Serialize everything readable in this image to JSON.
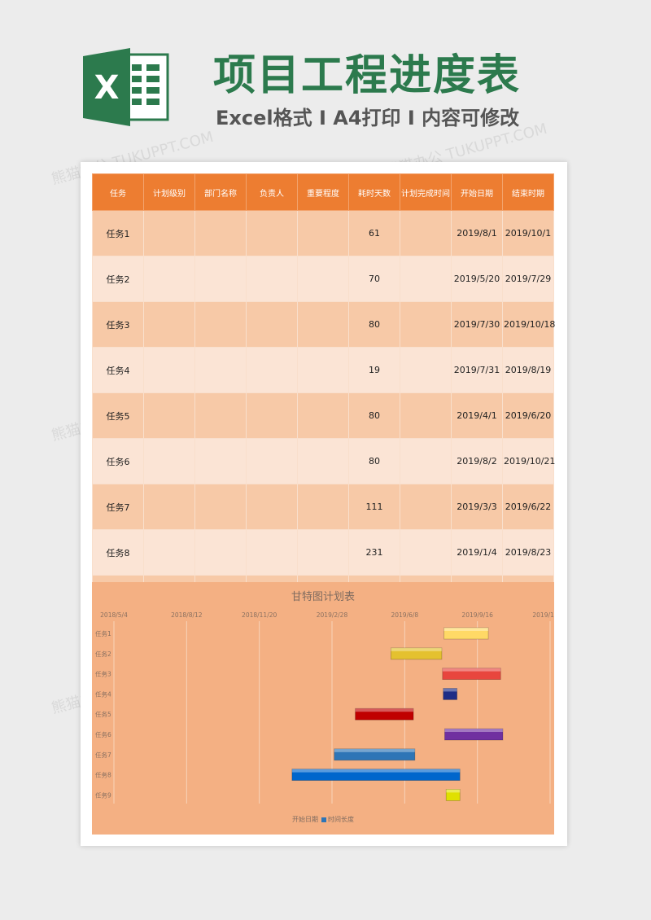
{
  "header": {
    "logo_letter": "X",
    "title": "项目工程进度表",
    "subtitle": "Excel格式 I A4打印 I 内容可修改"
  },
  "colors": {
    "brand_green": "#2c7a4d",
    "header_orange": "#ed7d31",
    "row_dark": "#f7c9a7",
    "row_light": "#fbe4d5",
    "chart_bg": "#f4b083"
  },
  "table": {
    "headers": [
      "任务",
      "计划级别",
      "部门名称",
      "负责人",
      "重要程度",
      "耗时天数",
      "计划完成时间",
      "开始日期",
      "结束时期"
    ],
    "rows": [
      [
        "任务1",
        "",
        "",
        "",
        "",
        "61",
        "",
        "2019/8/1",
        "2019/10/1"
      ],
      [
        "任务2",
        "",
        "",
        "",
        "",
        "70",
        "",
        "2019/5/20",
        "2019/7/29"
      ],
      [
        "任务3",
        "",
        "",
        "",
        "",
        "80",
        "",
        "2019/7/30",
        "2019/10/18"
      ],
      [
        "任务4",
        "",
        "",
        "",
        "",
        "19",
        "",
        "2019/7/31",
        "2019/8/19"
      ],
      [
        "任务5",
        "",
        "",
        "",
        "",
        "80",
        "",
        "2019/4/1",
        "2019/6/20"
      ],
      [
        "任务6",
        "",
        "",
        "",
        "",
        "80",
        "",
        "2019/8/2",
        "2019/10/21"
      ],
      [
        "任务7",
        "",
        "",
        "",
        "",
        "111",
        "",
        "2019/3/3",
        "2019/6/22"
      ],
      [
        "任务8",
        "",
        "",
        "",
        "",
        "231",
        "",
        "2019/1/4",
        "2019/8/23"
      ]
    ]
  },
  "chart_data": {
    "type": "bar",
    "title": "甘特图计划表",
    "x_ticks": [
      "2018/5/4",
      "2018/8/12",
      "2018/11/20",
      "2019/2/28",
      "2019/6/8",
      "2019/9/16",
      "2019/12/25"
    ],
    "xlim": [
      "2018/5/4",
      "2019/12/25"
    ],
    "categories": [
      "任务1",
      "任务2",
      "任务3",
      "任务4",
      "任务5",
      "任务6",
      "任务7",
      "任务8",
      "任务9"
    ],
    "series": [
      {
        "name": "开始日期",
        "values": [
          "2019/8/1",
          "2019/5/20",
          "2019/7/30",
          "2019/7/31",
          "2019/4/1",
          "2019/8/2",
          "2019/3/3",
          "2019/1/4",
          "2019/8/4"
        ]
      },
      {
        "name": "时间长度",
        "values": [
          61,
          70,
          80,
          19,
          80,
          80,
          111,
          231,
          19
        ]
      }
    ],
    "bar_colors": [
      "#ffd966",
      "#e4c12f",
      "#e8463e",
      "#1f2d86",
      "#c00000",
      "#7030a0",
      "#2e75b6",
      "#0066cc",
      "#e0e000"
    ],
    "grid": true,
    "legend_position": "bottom"
  },
  "watermark": "熊猫办公 TUKUPPT.COM"
}
